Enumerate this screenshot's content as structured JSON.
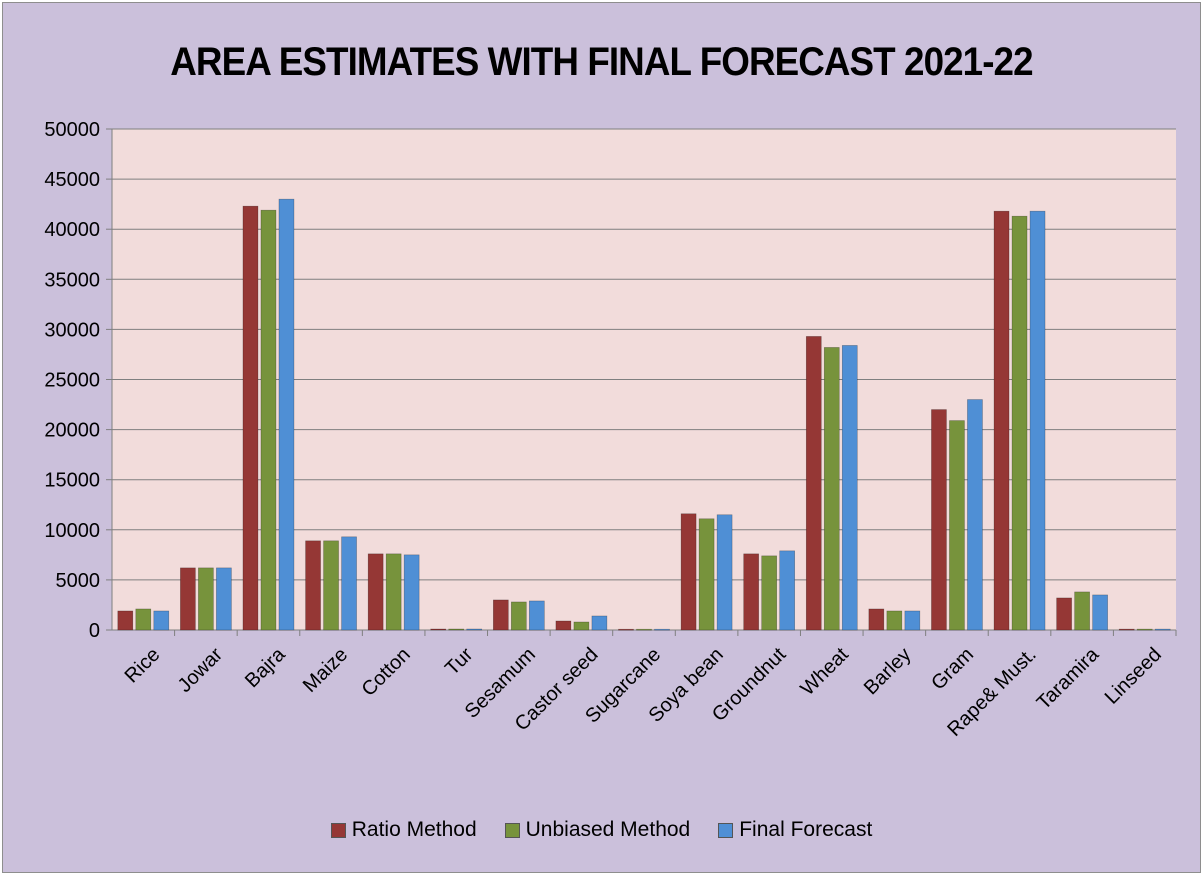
{
  "colors": {
    "background": "#cbc0db",
    "plot_area": "#f2dcdb",
    "gridline": "#7f7f7f"
  },
  "chart_data": {
    "type": "bar",
    "title": "AREA ESTIMATES WITH FINAL FORECAST 2021-22",
    "xlabel": "",
    "ylabel": "",
    "ylim": [
      0,
      50000
    ],
    "yticks": [
      0,
      5000,
      10000,
      15000,
      20000,
      25000,
      30000,
      35000,
      40000,
      45000,
      50000
    ],
    "grid": true,
    "legend_position": "bottom",
    "categories": [
      "Rice",
      "Jowar",
      "Bajra",
      "Maize",
      "Cotton",
      "Tur",
      "Sesamum",
      "Castor seed",
      "Sugarcane",
      "Soya bean",
      "Groundnut",
      "Wheat",
      "Barley",
      "Gram",
      "Rape& Must.",
      "Taramira",
      "Linseed"
    ],
    "series": [
      {
        "name": "Ratio Method",
        "color": "#953735",
        "values": [
          1900,
          6200,
          42300,
          8900,
          7600,
          100,
          3000,
          900,
          80,
          11600,
          7600,
          29300,
          2100,
          22000,
          41800,
          3200,
          90
        ]
      },
      {
        "name": "Unbiased Method",
        "color": "#77933c",
        "values": [
          2100,
          6200,
          41900,
          8900,
          7600,
          100,
          2800,
          800,
          80,
          11100,
          7400,
          28200,
          1900,
          20900,
          41300,
          3800,
          90
        ]
      },
      {
        "name": "Final Forecast",
        "color": "#4f8fd5",
        "values": [
          1900,
          6200,
          43000,
          9300,
          7500,
          100,
          2900,
          1400,
          80,
          11500,
          7900,
          28400,
          1900,
          23000,
          41800,
          3500,
          90
        ]
      }
    ]
  }
}
